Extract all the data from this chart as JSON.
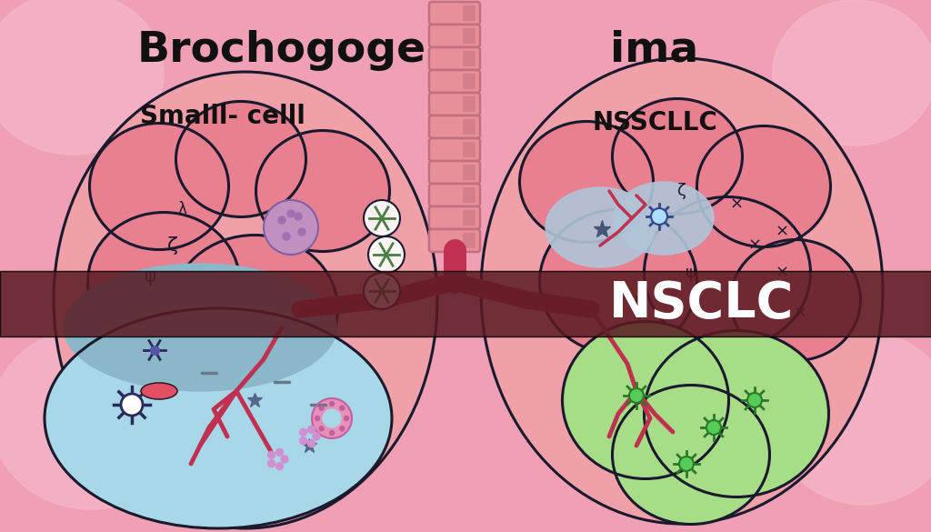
{
  "bg_color": "#f0a0b5",
  "title_left": "Brochogoge",
  "title_right": "ima",
  "subtitle_left": "Smalll- celll",
  "subtitle_right": "NSSCLLC",
  "banner_text": "NSCLC",
  "banner_color": "#5a1a22",
  "banner_alpha": 0.85,
  "banner_text_color": "#ffffff",
  "lung_pink": "#e88090",
  "lung_pink_light": "#f0a0a8",
  "left_lower_color": "#a8d8e8",
  "left_lower_dark": "#7ab0c8",
  "right_lower_color": "#a8dd88",
  "trachea_color": "#e8909a",
  "trachea_dark": "#c07080",
  "outline_color": "#1a1a2e",
  "vessel_color": "#c03050",
  "title_fontsize": 34,
  "subtitle_fontsize": 20,
  "banner_fontsize": 40,
  "purple_cell_color": "#c090c0",
  "blue_gray_patch": "#b0c4d8",
  "dark_cell_color": "#2a2a5a",
  "pink_donut_color": "#e890b8"
}
